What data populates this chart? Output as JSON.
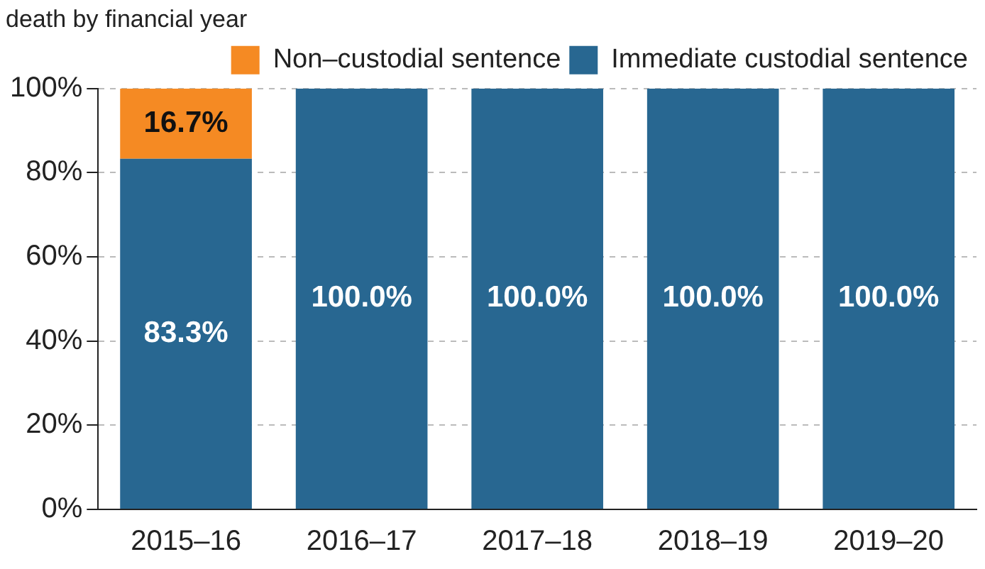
{
  "chart_data": {
    "type": "bar",
    "title": "death by financial year",
    "categories": [
      "2015–16",
      "2016–17",
      "2017–18",
      "2018–19",
      "2019–20"
    ],
    "stacked": true,
    "series": [
      {
        "name": "Immediate custodial sentence",
        "color": "#286791",
        "values": [
          83.3,
          100.0,
          100.0,
          100.0,
          100.0
        ],
        "value_labels": [
          "83.3%",
          "100.0%",
          "100.0%",
          "100.0%",
          "100.0%"
        ]
      },
      {
        "name": "Non–custodial sentence",
        "color": "#f58a23",
        "values": [
          16.7,
          null,
          null,
          null,
          null
        ],
        "value_labels": [
          "16.7%",
          null,
          null,
          null,
          null
        ]
      }
    ],
    "ylim": [
      0,
      100
    ],
    "yticks": [
      {
        "value": 0,
        "label": "0%"
      },
      {
        "value": 20,
        "label": "20%"
      },
      {
        "value": 40,
        "label": "40%"
      },
      {
        "value": 60,
        "label": "60%"
      },
      {
        "value": 80,
        "label": "80%"
      },
      {
        "value": 100,
        "label": "100%"
      }
    ],
    "grid": "y",
    "legend": "top right"
  }
}
